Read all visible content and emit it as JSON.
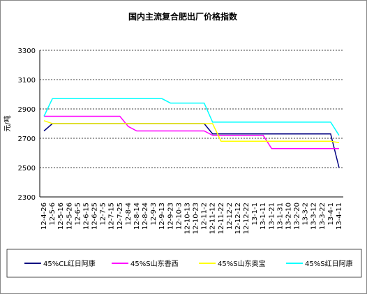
{
  "chart_data": {
    "type": "line",
    "title": "国内主流复合肥出厂价格指数",
    "y_label": "元/吨",
    "categories": [
      "12-4-26",
      "12-5-6",
      "12-5-16",
      "12-5-26",
      "12-6-5",
      "12-6-15",
      "12-6-25",
      "12-7-5",
      "12-7-15",
      "12-7-25",
      "12-8-4",
      "12-8-14",
      "12-8-24",
      "12-9-3",
      "12-9-13",
      "12-9-23",
      "12-10-3",
      "12-10-13",
      "12-10-23",
      "12-11-2",
      "12-11-12",
      "12-11-22",
      "12-12-2",
      "12-12-12",
      "12-12-22",
      "13-1-1",
      "13-1-11",
      "13-1-21",
      "13-1-31",
      "13-2-10",
      "13-2-20",
      "13-3-2",
      "13-3-12",
      "13-3-22",
      "13-4-1",
      "13-4-11"
    ],
    "series": [
      {
        "name": "45%CL红日阿康",
        "color": "#000080",
        "values": [
          2750,
          2800,
          2800,
          2800,
          2800,
          2800,
          2800,
          2800,
          2800,
          2800,
          2800,
          2800,
          2800,
          2800,
          2800,
          2800,
          2800,
          2800,
          2800,
          2800,
          2730,
          2730,
          2730,
          2730,
          2730,
          2730,
          2730,
          2730,
          2730,
          2730,
          2730,
          2730,
          2730,
          2730,
          2730,
          2500
        ]
      },
      {
        "name": "45%S山东香西",
        "color": "#ff00ff",
        "values": [
          2850,
          2850,
          2850,
          2850,
          2850,
          2850,
          2850,
          2850,
          2850,
          2850,
          2780,
          2750,
          2750,
          2750,
          2750,
          2750,
          2750,
          2750,
          2750,
          2750,
          2720,
          2720,
          2720,
          2720,
          2720,
          2720,
          2720,
          2630,
          2630,
          2630,
          2630,
          2630,
          2630,
          2630,
          2630,
          2630
        ]
      },
      {
        "name": "45%S山东奥宝",
        "color": "#ffff00",
        "values": [
          2820,
          2800,
          2800,
          2800,
          2800,
          2800,
          2800,
          2800,
          2800,
          2800,
          2800,
          2800,
          2800,
          2800,
          2800,
          2800,
          2800,
          2800,
          2800,
          2800,
          2800,
          2680,
          2680,
          2680,
          2680,
          2680,
          2680,
          2680,
          2680,
          2680,
          2680,
          2680,
          2680,
          2680,
          2680,
          2670
        ]
      },
      {
        "name": "45%S红日阿康",
        "color": "#00ffff",
        "values": [
          2850,
          2970,
          2970,
          2970,
          2970,
          2970,
          2970,
          2970,
          2970,
          2970,
          2970,
          2970,
          2970,
          2970,
          2970,
          2940,
          2940,
          2940,
          2940,
          2940,
          2810,
          2810,
          2810,
          2810,
          2810,
          2810,
          2810,
          2810,
          2810,
          2810,
          2810,
          2810,
          2810,
          2810,
          2810,
          2720
        ]
      }
    ],
    "ylim": [
      2300,
      3300
    ],
    "yticks": [
      2300,
      2500,
      2700,
      2900,
      3100,
      3300
    ],
    "grid": true
  }
}
